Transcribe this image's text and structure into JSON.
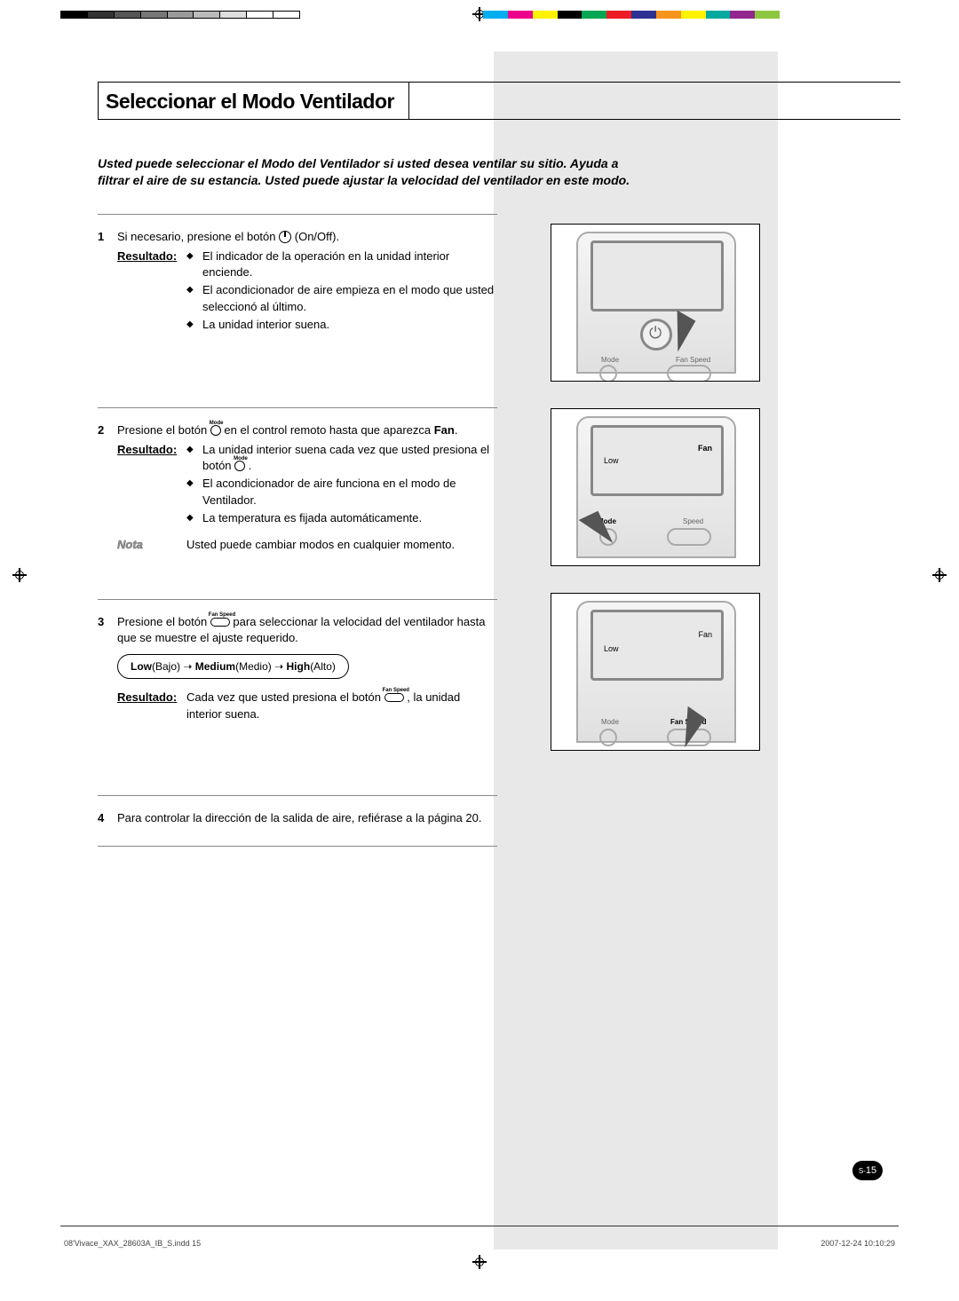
{
  "colors": {
    "reg": [
      "#00aeef",
      "#ec008c",
      "#fff200",
      "#000000",
      "#00a651",
      "#ed1c24",
      "#2e3192",
      "#f7941d",
      "#fff200",
      "#00a99d",
      "#92278f",
      "#8dc63f",
      "#ffffff"
    ],
    "gray_bg": "#e8e8e8"
  },
  "title": "Seleccionar el Modo Ventilador",
  "intro": "Usted puede seleccionar el Modo del Ventilador si usted desea ventilar su sitio. Ayuda a filtrar el aire de su estancia. Usted puede ajustar la velocidad del ventilador en este modo.",
  "labels": {
    "resultado": "Resultado",
    "nota": "Nota",
    "mode_icon": "Mode",
    "fanspeed_icon": "Fan Speed",
    "on_off": "(On/Off)."
  },
  "steps": [
    {
      "num": "1",
      "text_a": "Si necesario, presione el botón ",
      "text_b": " (On/Off).",
      "bullets": [
        "El indicador de la operación en la unidad interior enciende.",
        "El acondicionador de aire empieza en el modo que usted seleccionó al último.",
        "La unidad interior suena."
      ]
    },
    {
      "num": "2",
      "text_a": "Presione el botón ",
      "text_b": " en el control remoto hasta que aparezca ",
      "text_c": "Fan",
      "bullets": [
        "La unidad interior suena cada vez que usted presiona el botón",
        "El acondicionador de aire funciona en el modo de Ventilador.",
        "La temperatura es fijada automáticamente."
      ],
      "note": "Usted puede cambiar modos en cualquier momento."
    },
    {
      "num": "3",
      "text_a": "Presione el botón ",
      "text_b": " para seleccionar la velocidad del ventilador hasta que se muestre el ajuste requerido.",
      "sequence": {
        "low": "Low",
        "low_t": "(Bajo)",
        "med": "Medium",
        "med_t": "(Medio)",
        "high": "High",
        "high_t": "(Alto)",
        "arrow": " ➝ "
      },
      "result_text_a": "Cada vez que usted presiona el botón ",
      "result_text_b": " , la unidad interior suena."
    },
    {
      "num": "4",
      "text": "Para controlar la dirección de la salida de aire, refiérase a la página 20."
    }
  ],
  "illus": {
    "mode": "Mode",
    "fanspeed": "Fan Speed",
    "low": "Low",
    "fan": "Fan",
    "speed": "Speed"
  },
  "page_num_prefix": "S-",
  "page_num": "15",
  "footer_left": "08'Vivace_XAX_28603A_IB_S.indd   15",
  "footer_right": "2007-12-24   10:10:29"
}
